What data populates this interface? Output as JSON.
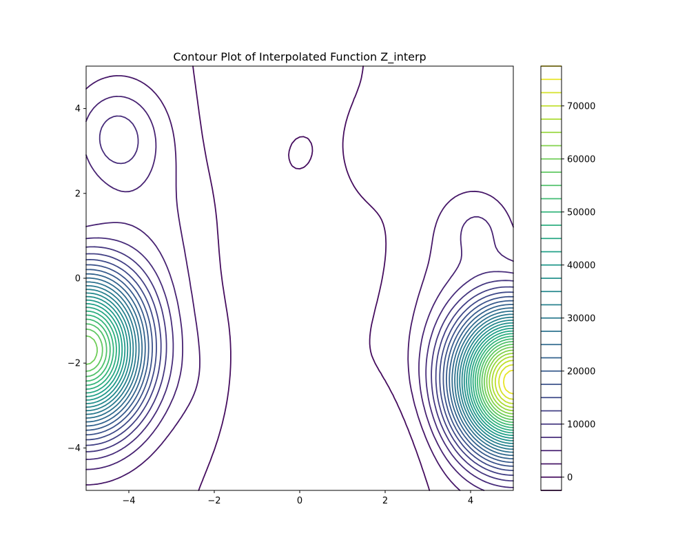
{
  "chart_data": {
    "type": "contour",
    "title": "Contour Plot of Interpolated Function Z_interp",
    "xlabel": "",
    "ylabel": "",
    "xlim": [
      -5,
      5
    ],
    "ylim": [
      -5,
      5
    ],
    "x_ticks": [
      -4,
      -2,
      0,
      2,
      4
    ],
    "x_tick_labels": [
      "−4",
      "−2",
      "0",
      "2",
      "4"
    ],
    "y_ticks": [
      -4,
      -2,
      0,
      2,
      4
    ],
    "y_tick_labels": [
      "−4",
      "−2",
      "0",
      "2",
      "4"
    ],
    "colormap": "viridis",
    "level_min": -2500,
    "level_max": 77500,
    "level_step": 2500,
    "colorbar_ticks": [
      0,
      10000,
      20000,
      30000,
      40000,
      50000,
      60000,
      70000
    ],
    "colorbar_tick_labels": [
      "0",
      "10000",
      "20000",
      "30000",
      "40000",
      "50000",
      "60000",
      "70000"
    ],
    "peaks": [
      {
        "x": -5.0,
        "y": -1.7,
        "value": 62000
      },
      {
        "x": 5.0,
        "y": -2.45,
        "value": 77000
      },
      {
        "x": -4.3,
        "y": 3.35,
        "value": 8000
      }
    ],
    "grid": false,
    "legend": "colorbar-right"
  }
}
